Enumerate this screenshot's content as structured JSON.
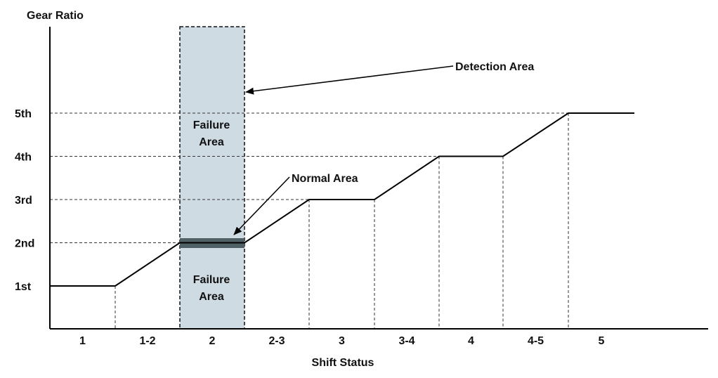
{
  "chart_data": {
    "type": "line",
    "ylabel": "Gear Ratio",
    "xlabel": "Shift Status",
    "y_ticks": [
      "1st",
      "2nd",
      "3rd",
      "4th",
      "5th"
    ],
    "x_categories": [
      "1",
      "1-2",
      "2",
      "2-3",
      "3",
      "3-4",
      "4",
      "4-5",
      "5"
    ],
    "series": [
      {
        "values": [
          1,
          1.5,
          2,
          2.5,
          3,
          3.5,
          4,
          4.5,
          5
        ]
      }
    ],
    "annotations": {
      "detection_area": "Detection Area",
      "normal_area": "Normal Area",
      "failure_area_upper": "Failure\nArea",
      "failure_area_lower": "Failure\nArea"
    },
    "colors": {
      "detection_fill": "#cfdbe3",
      "normal_band": "#4f6165",
      "line": "#000000"
    }
  }
}
